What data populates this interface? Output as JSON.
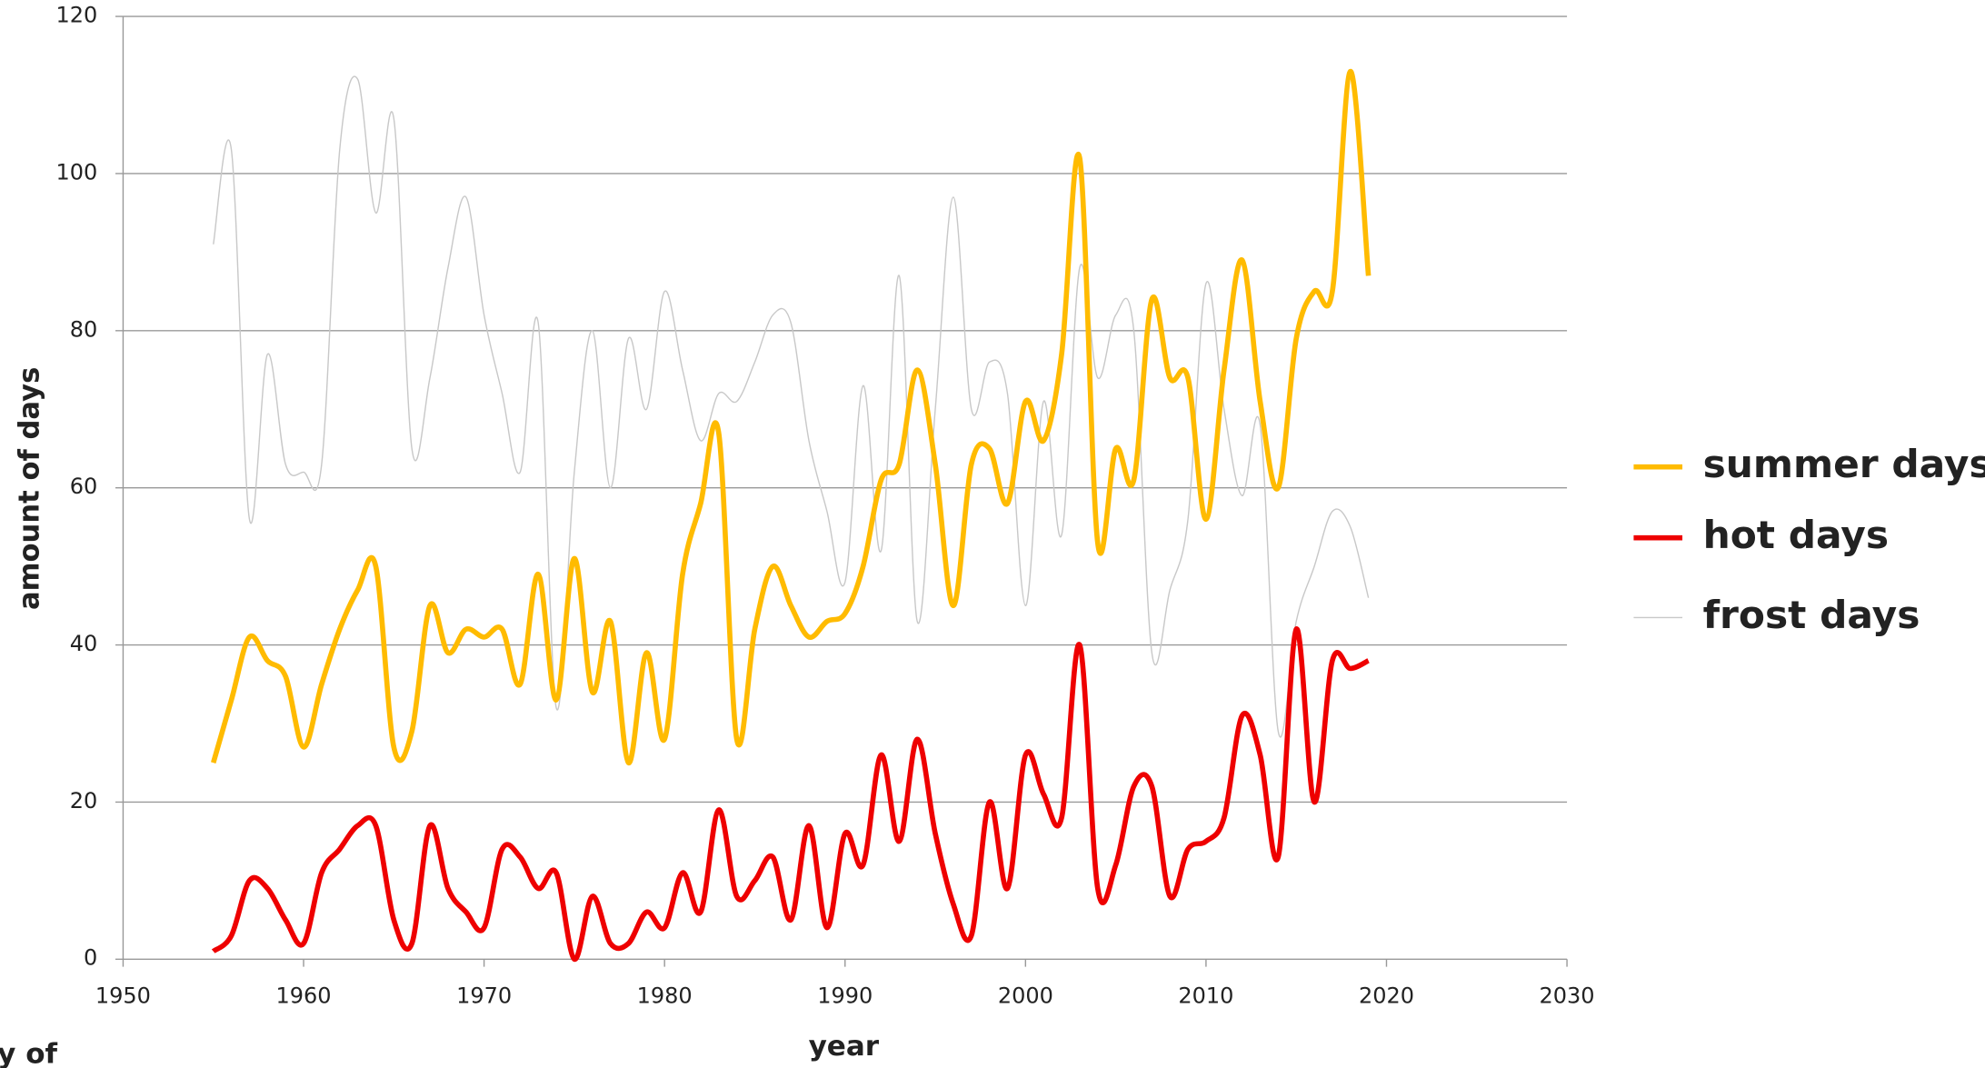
{
  "chart_data": {
    "type": "line",
    "x_label": "year",
    "y_label": "amount of days",
    "footnote": "y of",
    "x": [
      1955,
      1956,
      1957,
      1958,
      1959,
      1960,
      1961,
      1962,
      1963,
      1964,
      1965,
      1966,
      1967,
      1968,
      1969,
      1970,
      1971,
      1972,
      1973,
      1974,
      1975,
      1976,
      1977,
      1978,
      1979,
      1980,
      1981,
      1982,
      1983,
      1984,
      1985,
      1986,
      1987,
      1988,
      1989,
      1990,
      1991,
      1992,
      1993,
      1994,
      1995,
      1996,
      1997,
      1998,
      1999,
      2000,
      2001,
      2002,
      2003,
      2004,
      2005,
      2006,
      2007,
      2008,
      2009,
      2010,
      2011,
      2012,
      2013,
      2014,
      2015,
      2016,
      2017,
      2018,
      2019
    ],
    "series": [
      {
        "name": "summer days",
        "color": "#ffbb00",
        "values": [
          25,
          33,
          41,
          38,
          36,
          27,
          35,
          42,
          47,
          50,
          27,
          29,
          45,
          39,
          42,
          41,
          42,
          35,
          49,
          33,
          51,
          34,
          43,
          25,
          39,
          28,
          49,
          58,
          67,
          28,
          42,
          50,
          45,
          41,
          43,
          44,
          50,
          61,
          63,
          75,
          63,
          45,
          63,
          65,
          58,
          71,
          66,
          77,
          102,
          53,
          65,
          61,
          84,
          74,
          74,
          56,
          75,
          89,
          71,
          60,
          79,
          85,
          85,
          113,
          87
        ]
      },
      {
        "name": "hot days",
        "color": "#ee0000",
        "values": [
          1,
          3,
          10,
          9,
          5,
          2,
          11,
          14,
          17,
          17,
          5,
          2,
          17,
          9,
          6,
          4,
          14,
          13,
          9,
          11,
          0,
          8,
          2,
          2,
          6,
          4,
          11,
          6,
          19,
          8,
          10,
          13,
          5,
          17,
          4,
          16,
          12,
          26,
          15,
          28,
          16,
          7,
          3,
          20,
          9,
          26,
          21,
          18,
          40,
          9,
          12,
          22,
          22,
          8,
          14,
          15,
          18,
          31,
          26,
          13,
          42,
          20,
          38,
          37,
          38
        ]
      },
      {
        "name": "frost days",
        "color": "#c8c8c8",
        "values": [
          91,
          103,
          56,
          77,
          63,
          62,
          63,
          103,
          112,
          95,
          107,
          65,
          74,
          88,
          97,
          82,
          72,
          62,
          81,
          32,
          62,
          80,
          60,
          79,
          70,
          85,
          75,
          66,
          72,
          71,
          76,
          82,
          81,
          66,
          57,
          48,
          73,
          52,
          87,
          43,
          70,
          97,
          70,
          76,
          72,
          45,
          71,
          54,
          88,
          74,
          82,
          80,
          39,
          47,
          56,
          86,
          70,
          59,
          68,
          29,
          43,
          50,
          57,
          55,
          46
        ]
      }
    ],
    "xlim": [
      1950,
      2030
    ],
    "xticks": [
      1950,
      1960,
      1970,
      1980,
      1990,
      2000,
      2010,
      2020,
      2030
    ],
    "ylim": [
      0,
      120
    ],
    "yticks": [
      0,
      20,
      40,
      60,
      80,
      100,
      120
    ],
    "grid": true,
    "legend": "right"
  }
}
